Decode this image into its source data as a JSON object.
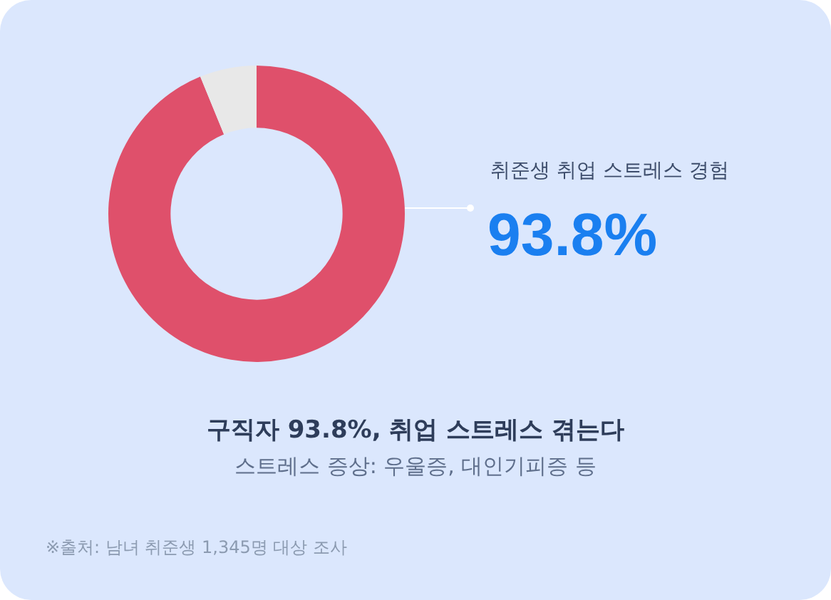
{
  "chart_data": {
    "type": "donut",
    "title": "구직자 93.8%, 취업 스트레스 겪는다",
    "subtitle": "스트레스 증상: 우울증, 대인기피증 등",
    "categories": [
      "취준생 취업 스트레스 경험",
      null
    ],
    "values": [
      93.8,
      6.2
    ],
    "colors": [
      "#df506b",
      "#e8e8e8"
    ],
    "value_labels": [
      "93.8%",
      null
    ],
    "legend": false,
    "annotations": [
      "※출처: 남녀 취준생 1,345명 대상 조사"
    ]
  }
}
